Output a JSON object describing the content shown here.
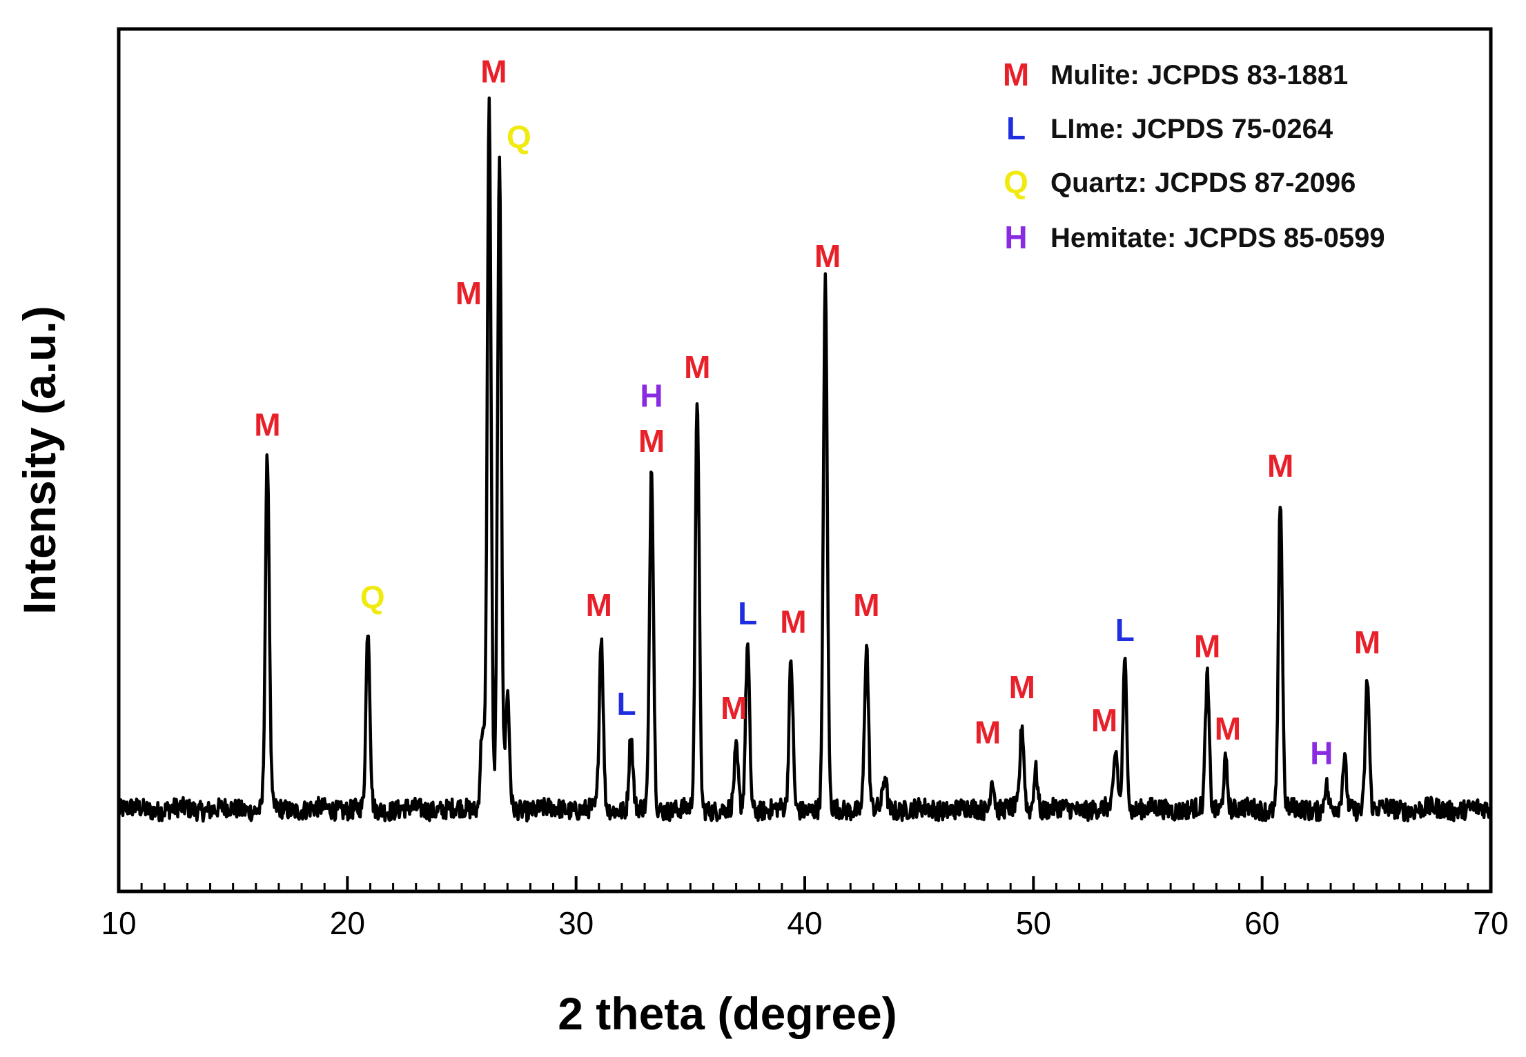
{
  "chart_data": {
    "type": "line",
    "title": "",
    "xlabel": "2 theta (degree)",
    "ylabel": "Intensity (a.u.)",
    "xlim": [
      10,
      70
    ],
    "ylim": [
      0,
      105
    ],
    "xticks": [
      10,
      20,
      30,
      40,
      50,
      60,
      70
    ],
    "grid": false,
    "legend_position": "top-right",
    "baseline": 10,
    "noise_amplitude": 1.2,
    "colors": {
      "line": "#000000",
      "M": "#e8202a",
      "L": "#1f2ee0",
      "Q": "#f0ea10",
      "H": "#8a2be2"
    },
    "legend": [
      {
        "symbol": "M",
        "label": "Mulite:  JCPDS 83-1881"
      },
      {
        "symbol": "L",
        "label": "LIme:  JCPDS 75-0264"
      },
      {
        "symbol": "Q",
        "label": "Quartz:  JCPDS 87-2096"
      },
      {
        "symbol": "H",
        "label": "Hemitate:  JCPDS 85-0599"
      }
    ],
    "peaks": [
      {
        "x": 16.5,
        "y": 53
      },
      {
        "x": 20.9,
        "y": 32
      },
      {
        "x": 25.9,
        "y": 20
      },
      {
        "x": 26.2,
        "y": 96
      },
      {
        "x": 26.65,
        "y": 88
      },
      {
        "x": 27.0,
        "y": 24
      },
      {
        "x": 31.1,
        "y": 31
      },
      {
        "x": 32.4,
        "y": 19
      },
      {
        "x": 33.3,
        "y": 52
      },
      {
        "x": 35.3,
        "y": 60
      },
      {
        "x": 37.0,
        "y": 17
      },
      {
        "x": 37.5,
        "y": 30
      },
      {
        "x": 39.4,
        "y": 28
      },
      {
        "x": 40.9,
        "y": 74
      },
      {
        "x": 42.7,
        "y": 30
      },
      {
        "x": 43.5,
        "y": 14
      },
      {
        "x": 48.2,
        "y": 14
      },
      {
        "x": 49.5,
        "y": 20
      },
      {
        "x": 50.1,
        "y": 15
      },
      {
        "x": 53.6,
        "y": 17
      },
      {
        "x": 54.0,
        "y": 28
      },
      {
        "x": 57.6,
        "y": 26
      },
      {
        "x": 58.4,
        "y": 16
      },
      {
        "x": 60.8,
        "y": 48
      },
      {
        "x": 62.8,
        "y": 13
      },
      {
        "x": 63.6,
        "y": 16
      },
      {
        "x": 64.6,
        "y": 26
      }
    ],
    "annotations": [
      {
        "symbol": "M",
        "x": 16.5,
        "y": 55.5
      },
      {
        "symbol": "Q",
        "x": 21.1,
        "y": 34.5
      },
      {
        "symbol": "M",
        "x": 25.3,
        "y": 71.5
      },
      {
        "symbol": "M",
        "x": 26.4,
        "y": 98.5
      },
      {
        "symbol": "Q",
        "x": 27.5,
        "y": 90.5
      },
      {
        "symbol": "M",
        "x": 31.0,
        "y": 33.5
      },
      {
        "symbol": "L",
        "x": 32.2,
        "y": 21.5
      },
      {
        "symbol": "H",
        "x": 33.3,
        "y": 59.0
      },
      {
        "symbol": "M",
        "x": 33.3,
        "y": 53.5
      },
      {
        "symbol": "M",
        "x": 35.3,
        "y": 62.5
      },
      {
        "symbol": "M",
        "x": 36.9,
        "y": 21.0
      },
      {
        "symbol": "L",
        "x": 37.5,
        "y": 32.5
      },
      {
        "symbol": "M",
        "x": 39.5,
        "y": 31.5
      },
      {
        "symbol": "M",
        "x": 41.0,
        "y": 76.0
      },
      {
        "symbol": "M",
        "x": 42.7,
        "y": 33.5
      },
      {
        "symbol": "M",
        "x": 48.0,
        "y": 18.0
      },
      {
        "symbol": "M",
        "x": 49.5,
        "y": 23.5
      },
      {
        "symbol": "M",
        "x": 53.1,
        "y": 19.5
      },
      {
        "symbol": "L",
        "x": 54.0,
        "y": 30.5
      },
      {
        "symbol": "M",
        "x": 57.6,
        "y": 28.5
      },
      {
        "symbol": "M",
        "x": 58.5,
        "y": 18.5
      },
      {
        "symbol": "M",
        "x": 60.8,
        "y": 50.5
      },
      {
        "symbol": "H",
        "x": 62.6,
        "y": 15.5
      },
      {
        "symbol": "M",
        "x": 64.6,
        "y": 29.0
      }
    ]
  }
}
